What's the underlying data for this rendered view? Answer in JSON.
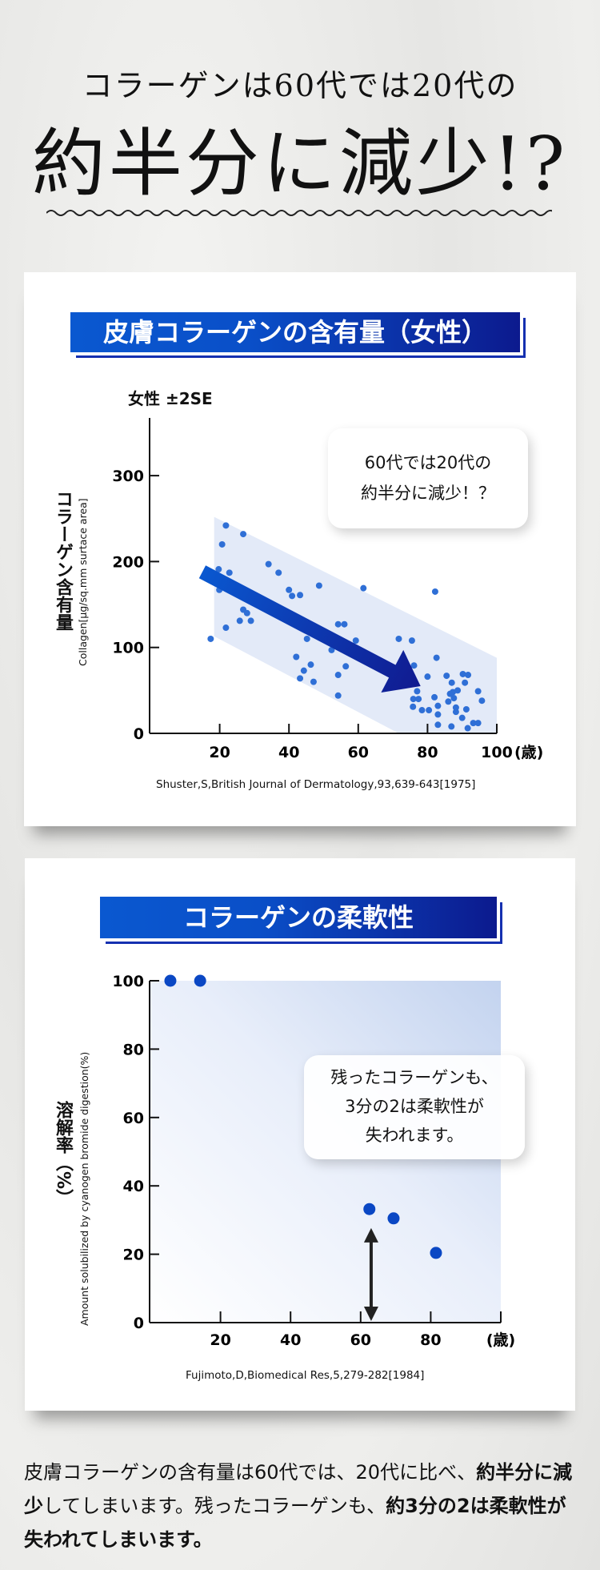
{
  "headline": {
    "line1": "コラーゲンは60代では20代の",
    "line2": "約半分に減少!?"
  },
  "colors": {
    "banner_start": "#0a58d0",
    "banner_end": "#0c1a8e",
    "point_chart1": "#2f6fd6",
    "point_chart2": "#0a47c4",
    "band_chart1": "#e3eaf8",
    "arrow_chart1_start": "#0a58d0",
    "arrow_chart1_end": "#101a90",
    "arrow_chart2": "#222222"
  },
  "chart1_card": {
    "banner_title": "皮膚コラーゲンの含有量（女性）",
    "legend_note": "女性 ±2SE",
    "y_label_jp": "コラーゲン含有量",
    "bubble_line1": "60代では20代の",
    "bubble_line2": "約半分に減少！？",
    "citation": "Shuster,S,British Journal of Dermatology,93,639-643[1975]"
  },
  "chart2_card": {
    "banner_title": "コラーゲンの柔軟性",
    "y_label_jp": "溶解率（%）",
    "bubble_line1": "残ったコラーゲンも、",
    "bubble_line2": "3分の2は柔軟性が",
    "bubble_line3": "失われます。",
    "citation": "Fujimoto,D,Biomedical Res,5,279-282[1984]"
  },
  "body_text": {
    "seg1": "皮膚コラーゲンの含有量は60代では、20代に比べ、",
    "seg2": "約半分に減少",
    "seg3": "してしまいます。残ったコラーゲンも、",
    "seg4": "約3分の2は柔軟性が失われてしまいます。"
  },
  "chart_data": [
    {
      "type": "scatter",
      "title": "皮膚コラーゲンの含有量（女性）",
      "ylabel": "Collagen[μg/sq.mm surtace area]",
      "xlabel": "",
      "x_unit": "(歳)",
      "xlim": [
        0,
        100
      ],
      "ylim": [
        0,
        360
      ],
      "x_ticks": [
        "20",
        "40",
        "60",
        "80",
        "100"
      ],
      "y_ticks": [
        "0",
        "100",
        "200",
        "300"
      ],
      "grid": false,
      "band_2se": [
        [
          18.4,
          252
        ],
        [
          100,
          88
        ],
        [
          100,
          0
        ],
        [
          71.7,
          0
        ],
        [
          18.4,
          113
        ]
      ],
      "trend_arrow": {
        "from": [
          15,
          188
        ],
        "to": [
          78,
          55
        ]
      },
      "points": [
        [
          17.4,
          110
        ],
        [
          21.8,
          242
        ],
        [
          20.7,
          220
        ],
        [
          19.7,
          191
        ],
        [
          22.8,
          187
        ],
        [
          19.9,
          167
        ],
        [
          21.8,
          123
        ],
        [
          26.8,
          232
        ],
        [
          26.8,
          144
        ],
        [
          27.9,
          140
        ],
        [
          25.8,
          131
        ],
        [
          29,
          131
        ],
        [
          34.1,
          197
        ],
        [
          37,
          187
        ],
        [
          40,
          167
        ],
        [
          40.9,
          160
        ],
        [
          43.2,
          161
        ],
        [
          48.7,
          172
        ],
        [
          61.5,
          169
        ],
        [
          45.2,
          110
        ],
        [
          42.1,
          89
        ],
        [
          46.3,
          80
        ],
        [
          44.3,
          73
        ],
        [
          43.2,
          64
        ],
        [
          47.1,
          60
        ],
        [
          54.2,
          127
        ],
        [
          56,
          127
        ],
        [
          59.3,
          108
        ],
        [
          52.3,
          97
        ],
        [
          56.4,
          78
        ],
        [
          54.2,
          68
        ],
        [
          54.2,
          44
        ],
        [
          71.7,
          110
        ],
        [
          75.5,
          108
        ],
        [
          82.2,
          165
        ],
        [
          82.6,
          88
        ],
        [
          76.1,
          79
        ],
        [
          72.8,
          87
        ],
        [
          80,
          66
        ],
        [
          85.5,
          67
        ],
        [
          87,
          59
        ],
        [
          90.2,
          69
        ],
        [
          91.7,
          68
        ],
        [
          90.8,
          59
        ],
        [
          77,
          49
        ],
        [
          75.9,
          40
        ],
        [
          77.4,
          40
        ],
        [
          75.8,
          31
        ],
        [
          78.4,
          27
        ],
        [
          80.4,
          27
        ],
        [
          82,
          42
        ],
        [
          83,
          32
        ],
        [
          83,
          22
        ],
        [
          83,
          10
        ],
        [
          86,
          37
        ],
        [
          86.5,
          46
        ],
        [
          87.3,
          48
        ],
        [
          87.6,
          41
        ],
        [
          88.7,
          50
        ],
        [
          88.2,
          30
        ],
        [
          88.2,
          25
        ],
        [
          91.2,
          28
        ],
        [
          90,
          18
        ],
        [
          86.9,
          8
        ],
        [
          91.6,
          6
        ],
        [
          93.2,
          12
        ],
        [
          94.6,
          12
        ],
        [
          94.6,
          49
        ],
        [
          95.7,
          38
        ]
      ]
    },
    {
      "type": "scatter",
      "title": "コラーゲンの柔軟性",
      "ylabel": "Amount solubilized by cyanogen bromide digestion(%)",
      "xlabel": "",
      "x_unit": "(歳)",
      "xlim": [
        0,
        100
      ],
      "ylim": [
        0,
        100
      ],
      "x_ticks": [
        "20",
        "40",
        "60",
        "80"
      ],
      "y_ticks": [
        "0",
        "20",
        "40",
        "60",
        "80",
        "100"
      ],
      "grid": false,
      "annotation_arrow": {
        "x": 63,
        "from": 0,
        "to": 30
      },
      "points": [
        [
          5.7,
          100
        ],
        [
          14.2,
          100
        ],
        [
          62.5,
          33.2
        ],
        [
          69.4,
          30.5
        ],
        [
          81.5,
          20.4
        ]
      ]
    }
  ]
}
